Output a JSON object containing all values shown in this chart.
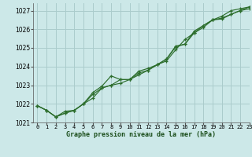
{
  "bg_color": "#cce8e8",
  "grid_color": "#aacccc",
  "line_color": "#2d6e2d",
  "xlabel": "Graphe pression niveau de la mer (hPa)",
  "xlim": [
    -0.5,
    23
  ],
  "ylim": [
    1021,
    1027.4
  ],
  "yticks": [
    1021,
    1022,
    1023,
    1024,
    1025,
    1026,
    1027
  ],
  "xticks": [
    0,
    1,
    2,
    3,
    4,
    5,
    6,
    7,
    8,
    9,
    10,
    11,
    12,
    13,
    14,
    15,
    16,
    17,
    18,
    19,
    20,
    21,
    22,
    23
  ],
  "series1": [
    1021.9,
    1021.65,
    1021.3,
    1021.5,
    1021.65,
    1022.0,
    1022.5,
    1022.85,
    1023.0,
    1023.3,
    1023.3,
    1023.55,
    1023.8,
    1024.1,
    1024.4,
    1025.1,
    1025.2,
    1025.8,
    1026.2,
    1026.5,
    1026.55,
    1026.8,
    1027.0,
    1027.1
  ],
  "series2": [
    1021.9,
    1021.65,
    1021.3,
    1021.6,
    1021.65,
    1022.0,
    1022.6,
    1022.95,
    1023.5,
    1023.3,
    1023.3,
    1023.75,
    1023.9,
    1024.1,
    1024.3,
    1024.9,
    1025.45,
    1025.8,
    1026.1,
    1026.5,
    1026.7,
    1027.0,
    1027.1,
    1027.2
  ],
  "series3": [
    1021.9,
    1021.65,
    1021.3,
    1021.5,
    1021.65,
    1022.0,
    1022.3,
    1022.85,
    1023.0,
    1023.1,
    1023.3,
    1023.65,
    1023.8,
    1024.1,
    1024.4,
    1025.05,
    1025.2,
    1025.9,
    1026.2,
    1026.5,
    1026.6,
    1026.8,
    1027.0,
    1027.2
  ]
}
